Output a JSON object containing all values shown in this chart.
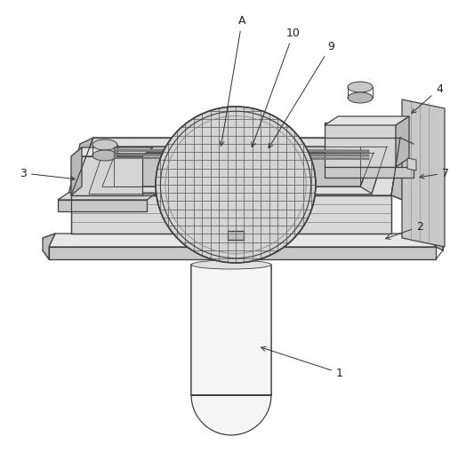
{
  "bg": "#ffffff",
  "lc": "#404040",
  "lc2": "#303030",
  "fills": {
    "top_light": "#e8e8e8",
    "top_mid": "#d8d8d8",
    "side_dark": "#b8b8b8",
    "side_mid": "#c8c8c8",
    "inner_top": "#d0d0d0",
    "grid_bg": "#c0c0c0",
    "well_floor": "#cccccc",
    "cyl_body": "#e0e0e0",
    "cyl_cap": "#d0d0d0",
    "block": "#d4d4d4",
    "block_side": "#b0b0b0",
    "block_top": "#e0e0e0",
    "knob": "#c8c8c8",
    "rails": "#888888",
    "panel": "#c8c8c8",
    "panel_side": "#b4b4b4"
  }
}
